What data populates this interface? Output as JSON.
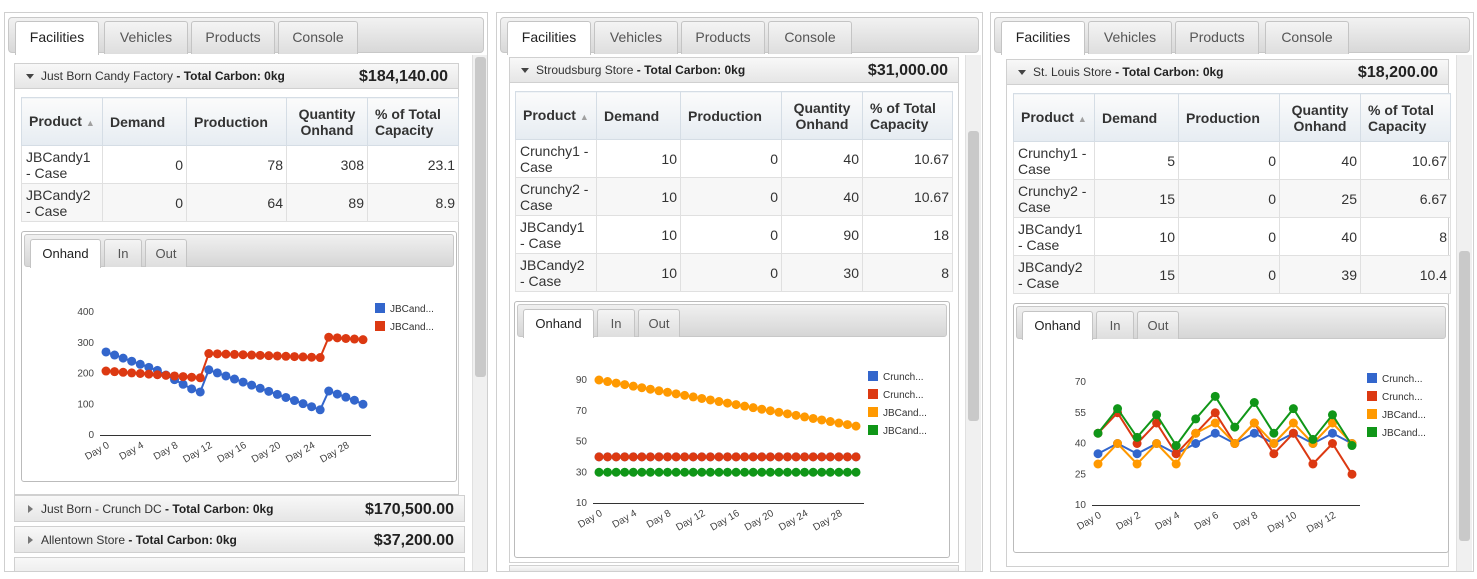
{
  "tab_labels": [
    "Facilities",
    "Vehicles",
    "Products",
    "Console"
  ],
  "chart_tab_labels": [
    "Onhand",
    "In",
    "Out"
  ],
  "columns": [
    "Product",
    "Demand",
    "Production",
    "Quantity Onhand",
    "% of Total Capacity"
  ],
  "carbon_label": "- Total Carbon: 0kg",
  "panels": [
    {
      "facility": {
        "name": "Just Born Candy Factory",
        "amount": "$184,140.00",
        "rows": [
          {
            "product": "JBCandy1 - Case",
            "demand": "0",
            "production": "78",
            "onhand": "308",
            "capacity": "23.1"
          },
          {
            "product": "JBCandy2 - Case",
            "demand": "0",
            "production": "64",
            "onhand": "89",
            "capacity": "8.9"
          }
        ]
      },
      "collapsed": [
        {
          "name": "Just Born - Crunch DC",
          "amount": "$170,500.00"
        },
        {
          "name": "Allentown Store",
          "amount": "$37,200.00"
        }
      ]
    },
    {
      "facility": {
        "name": "Stroudsburg Store",
        "amount": "$31,000.00",
        "rows": [
          {
            "product": "Crunchy1 - Case",
            "demand": "10",
            "production": "0",
            "onhand": "40",
            "capacity": "10.67"
          },
          {
            "product": "Crunchy2 - Case",
            "demand": "10",
            "production": "0",
            "onhand": "40",
            "capacity": "10.67"
          },
          {
            "product": "JBCandy1 - Case",
            "demand": "10",
            "production": "0",
            "onhand": "90",
            "capacity": "18"
          },
          {
            "product": "JBCandy2 - Case",
            "demand": "10",
            "production": "0",
            "onhand": "30",
            "capacity": "8"
          }
        ]
      },
      "collapsed": []
    },
    {
      "facility": {
        "name": "St. Louis Store",
        "amount": "$18,200.00",
        "rows": [
          {
            "product": "Crunchy1 - Case",
            "demand": "5",
            "production": "0",
            "onhand": "40",
            "capacity": "10.67"
          },
          {
            "product": "Crunchy2 - Case",
            "demand": "15",
            "production": "0",
            "onhand": "25",
            "capacity": "6.67"
          },
          {
            "product": "JBCandy1 - Case",
            "demand": "10",
            "production": "0",
            "onhand": "40",
            "capacity": "8"
          },
          {
            "product": "JBCandy2 - Case",
            "demand": "15",
            "production": "0",
            "onhand": "39",
            "capacity": "10.4"
          }
        ]
      },
      "collapsed": []
    }
  ],
  "chart_data": [
    {
      "type": "line",
      "title": "",
      "xlabel": "",
      "ylabel": "",
      "x": [
        "Day 0",
        "Day 1",
        "Day 2",
        "Day 3",
        "Day 4",
        "Day 5",
        "Day 6",
        "Day 7",
        "Day 8",
        "Day 9",
        "Day 10",
        "Day 11",
        "Day 12",
        "Day 13",
        "Day 14",
        "Day 15",
        "Day 16",
        "Day 17",
        "Day 18",
        "Day 19",
        "Day 20",
        "Day 21",
        "Day 22",
        "Day 23",
        "Day 24",
        "Day 25",
        "Day 26",
        "Day 27",
        "Day 28",
        "Day 29",
        "Day 30"
      ],
      "x_tick_labels": [
        "Day 0",
        "Day 4",
        "Day 8",
        "Day 12",
        "Day 16",
        "Day 20",
        "Day 24",
        "Day 28"
      ],
      "y_ticks": [
        "400",
        "300",
        "200",
        "100",
        "0"
      ],
      "ylim": [
        0,
        400
      ],
      "legend_position": "right",
      "grid": false,
      "series": [
        {
          "name": "JBCand...",
          "color": "#3366cc",
          "values": [
            270,
            260,
            250,
            240,
            230,
            220,
            210,
            195,
            180,
            165,
            150,
            140,
            212,
            202,
            192,
            182,
            172,
            162,
            152,
            142,
            132,
            122,
            112,
            102,
            92,
            82,
            143,
            133,
            123,
            113,
            100
          ]
        },
        {
          "name": "JBCand...",
          "color": "#dc3912",
          "values": [
            208,
            206,
            204,
            202,
            200,
            198,
            196,
            194,
            192,
            190,
            188,
            186,
            265,
            264,
            263,
            262,
            261,
            260,
            259,
            258,
            257,
            256,
            255,
            254,
            253,
            252,
            318,
            316,
            314,
            312,
            310
          ]
        }
      ]
    },
    {
      "type": "line",
      "title": "",
      "xlabel": "",
      "ylabel": "",
      "x": [
        "Day 0",
        "Day 1",
        "Day 2",
        "Day 3",
        "Day 4",
        "Day 5",
        "Day 6",
        "Day 7",
        "Day 8",
        "Day 9",
        "Day 10",
        "Day 11",
        "Day 12",
        "Day 13",
        "Day 14",
        "Day 15",
        "Day 16",
        "Day 17",
        "Day 18",
        "Day 19",
        "Day 20",
        "Day 21",
        "Day 22",
        "Day 23",
        "Day 24",
        "Day 25",
        "Day 26",
        "Day 27",
        "Day 28",
        "Day 29",
        "Day 30"
      ],
      "x_tick_labels": [
        "Day 0",
        "Day 4",
        "Day 8",
        "Day 12",
        "Day 16",
        "Day 20",
        "Day 24",
        "Day 28"
      ],
      "y_ticks": [
        "90",
        "70",
        "50",
        "30",
        "10"
      ],
      "ylim": [
        10,
        90
      ],
      "legend_position": "right",
      "grid": false,
      "series": [
        {
          "name": "Crunch...",
          "color": "#3366cc",
          "values": [
            40,
            40,
            40,
            40,
            40,
            40,
            40,
            40,
            40,
            40,
            40,
            40,
            40,
            40,
            40,
            40,
            40,
            40,
            40,
            40,
            40,
            40,
            40,
            40,
            40,
            40,
            40,
            40,
            40,
            40,
            40
          ]
        },
        {
          "name": "Crunch...",
          "color": "#dc3912",
          "values": [
            40,
            40,
            40,
            40,
            40,
            40,
            40,
            40,
            40,
            40,
            40,
            40,
            40,
            40,
            40,
            40,
            40,
            40,
            40,
            40,
            40,
            40,
            40,
            40,
            40,
            40,
            40,
            40,
            40,
            40,
            40
          ]
        },
        {
          "name": "JBCand...",
          "color": "#ff9900",
          "values": [
            90,
            89,
            88,
            87,
            86,
            85,
            84,
            83,
            82,
            81,
            80,
            79,
            78,
            77,
            76,
            75,
            74,
            73,
            72,
            71,
            70,
            69,
            68,
            67,
            66,
            65,
            64,
            63,
            62,
            61,
            60
          ]
        },
        {
          "name": "JBCand...",
          "color": "#109618",
          "values": [
            30,
            30,
            30,
            30,
            30,
            30,
            30,
            30,
            30,
            30,
            30,
            30,
            30,
            30,
            30,
            30,
            30,
            30,
            30,
            30,
            30,
            30,
            30,
            30,
            30,
            30,
            30,
            30,
            30,
            30,
            30
          ]
        }
      ]
    },
    {
      "type": "line",
      "title": "",
      "xlabel": "",
      "ylabel": "",
      "x": [
        "Day 0",
        "Day 1",
        "Day 2",
        "Day 3",
        "Day 4",
        "Day 5",
        "Day 6",
        "Day 7",
        "Day 8",
        "Day 9",
        "Day 10",
        "Day 11",
        "Day 12",
        "Day 13"
      ],
      "x_tick_labels": [
        "Day 0",
        "Day 2",
        "Day 4",
        "Day 6",
        "Day 8",
        "Day 10",
        "Day 12"
      ],
      "y_ticks": [
        "70",
        "55",
        "40",
        "25",
        "10"
      ],
      "ylim": [
        10,
        70
      ],
      "legend_position": "right",
      "grid": false,
      "series": [
        {
          "name": "Crunch...",
          "color": "#3366cc",
          "values": [
            35,
            40,
            35,
            40,
            35,
            40,
            45,
            40,
            45,
            40,
            45,
            40,
            45,
            40
          ]
        },
        {
          "name": "Crunch...",
          "color": "#dc3912",
          "values": [
            45,
            55,
            40,
            50,
            35,
            45,
            55,
            40,
            50,
            35,
            45,
            30,
            40,
            25
          ]
        },
        {
          "name": "JBCand...",
          "color": "#ff9900",
          "values": [
            30,
            40,
            30,
            40,
            30,
            45,
            50,
            40,
            50,
            40,
            50,
            40,
            50,
            40
          ]
        },
        {
          "name": "JBCand...",
          "color": "#109618",
          "values": [
            45,
            57,
            43,
            54,
            39,
            52,
            63,
            48,
            60,
            45,
            57,
            42,
            54,
            39
          ]
        }
      ]
    }
  ]
}
